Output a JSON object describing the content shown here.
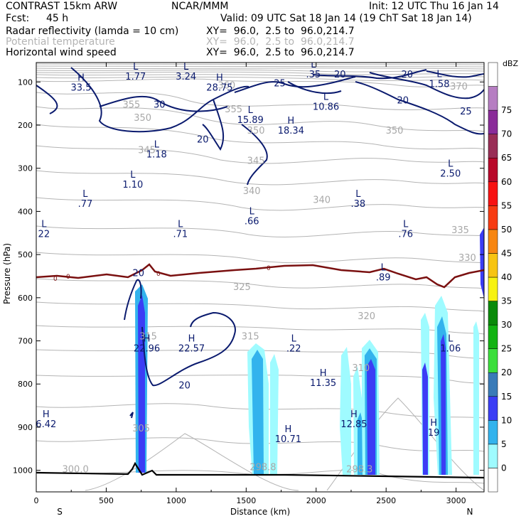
{
  "header": {
    "title": "CONTRAST 15km ARW",
    "org": "NCAR/MMM",
    "init": "Init: 12 UTC Thu 16 Jan 14",
    "fcst_label": "Fcst:",
    "fcst_value": "45 h",
    "valid": "Valid: 09 UTC Sat 18 Jan 14 (19 ChT Sat 18 Jan 14)",
    "fields": [
      {
        "name": "Radar reflectivity (lamda = 10 cm)",
        "xy": "XY=  96.0,  2.5 to  96.0,214.7",
        "color": "#000000"
      },
      {
        "name": "Potential temperature",
        "xy": "XY=  96.0,  2.5 to  96.0,214.7",
        "color": "#b4b4b4"
      },
      {
        "name": "Horizontal wind speed",
        "xy": "XY=  96.0,  2.5 to  96.0,214.7",
        "color": "#000000"
      }
    ]
  },
  "chart_data": {
    "type": "cross-section",
    "xlabel": "Distance (km)",
    "ylabel": "Pressure (hPa)",
    "x_ticks": [
      0,
      500,
      1000,
      1500,
      2000,
      2500,
      3000
    ],
    "y_ticks": [
      100,
      200,
      300,
      400,
      500,
      600,
      700,
      800,
      900,
      1000
    ],
    "xlim": [
      0,
      3200
    ],
    "ylim": [
      1050,
      55
    ],
    "x_end_labels": {
      "left": "S",
      "right": "N"
    },
    "colorbar": {
      "unit": "dBZ",
      "levels": [
        "0",
        "5",
        "10",
        "15",
        "20",
        "25",
        "30",
        "35",
        "40",
        "45",
        "50",
        "55",
        "60",
        "65",
        "70",
        "75"
      ],
      "colors": [
        "#ffffff",
        "#9ffbff",
        "#33b3ed",
        "#3b3df5",
        "#3a7bb8",
        "#3bde3b",
        "#12b312",
        "#0a8a0a",
        "#f7f212",
        "#f7c412",
        "#f78612",
        "#f73b12",
        "#f71212",
        "#b8082a",
        "#992e56",
        "#8a2c99",
        "#b67ec2",
        "#ffffff"
      ]
    },
    "potential_temperature_labels": [
      {
        "text": "370",
        "x": 3020,
        "p": 118
      },
      {
        "text": "360",
        "x": 1360,
        "p": 115
      },
      {
        "text": "355",
        "x": 680,
        "p": 160
      },
      {
        "text": "355",
        "x": 1410,
        "p": 170
      },
      {
        "text": "350",
        "x": 760,
        "p": 190
      },
      {
        "text": "350",
        "x": 1570,
        "p": 220
      },
      {
        "text": "350",
        "x": 2560,
        "p": 220
      },
      {
        "text": "345",
        "x": 790,
        "p": 265
      },
      {
        "text": "345",
        "x": 1570,
        "p": 290
      },
      {
        "text": "340",
        "x": 1540,
        "p": 360
      },
      {
        "text": "340",
        "x": 2040,
        "p": 380
      },
      {
        "text": "335",
        "x": 3030,
        "p": 450
      },
      {
        "text": "330",
        "x": 3080,
        "p": 515
      },
      {
        "text": "325",
        "x": 1470,
        "p": 582
      },
      {
        "text": "320",
        "x": 2360,
        "p": 650
      },
      {
        "text": "315",
        "x": 800,
        "p": 697
      },
      {
        "text": "315",
        "x": 1530,
        "p": 697
      },
      {
        "text": "310",
        "x": 2320,
        "p": 770
      },
      {
        "text": "305",
        "x": 750,
        "p": 910
      },
      {
        "text": "300.0",
        "x": 280,
        "p": 1005
      },
      {
        "text": "298.8",
        "x": 1620,
        "p": 1000
      },
      {
        "text": "298.3",
        "x": 2310,
        "p": 1005
      }
    ],
    "wind_speed_labels": [
      {
        "text": "30",
        "x": 880,
        "p": 160
      },
      {
        "text": "25",
        "x": 1740,
        "p": 110
      },
      {
        "text": "20",
        "x": 2170,
        "p": 90
      },
      {
        "text": "20",
        "x": 2650,
        "p": 90
      },
      {
        "text": "20",
        "x": 2620,
        "p": 150
      },
      {
        "text": "25",
        "x": 3070,
        "p": 175
      },
      {
        "text": "20",
        "x": 1190,
        "p": 240
      },
      {
        "text": "20",
        "x": 730,
        "p": 550
      },
      {
        "text": "20",
        "x": 1060,
        "p": 810
      }
    ],
    "extrema": [
      {
        "type": "H",
        "value": "33.5",
        "x": 320,
        "p": 100
      },
      {
        "type": "L",
        "value": "1.77",
        "x": 710,
        "p": 75
      },
      {
        "type": "L",
        "value": "3.24",
        "x": 1070,
        "p": 75
      },
      {
        "type": "H",
        "value": "28.75",
        "x": 1310,
        "p": 100
      },
      {
        "type": "L",
        "value": ".35",
        "x": 1980,
        "p": 70
      },
      {
        "type": "L",
        "value": "1.58",
        "x": 2880,
        "p": 92
      },
      {
        "type": "L",
        "value": "10.86",
        "x": 2070,
        "p": 145
      },
      {
        "type": "L",
        "value": "15.89",
        "x": 1530,
        "p": 175
      },
      {
        "type": "H",
        "value": "18.34",
        "x": 1820,
        "p": 200
      },
      {
        "type": "L",
        "value": "1.18",
        "x": 860,
        "p": 255
      },
      {
        "type": "L",
        "value": "1.10",
        "x": 690,
        "p": 325
      },
      {
        "type": "L",
        "value": "2.50",
        "x": 2960,
        "p": 300
      },
      {
        "type": "L",
        "value": ".77",
        "x": 350,
        "p": 370
      },
      {
        "type": "L",
        "value": ".38",
        "x": 2300,
        "p": 370
      },
      {
        "type": "L",
        "value": ".66",
        "x": 1540,
        "p": 410
      },
      {
        "type": "L",
        "value": "22",
        "x": 55,
        "p": 440
      },
      {
        "type": "L",
        "value": ".71",
        "x": 1030,
        "p": 440
      },
      {
        "type": "L",
        "value": ".76",
        "x": 2640,
        "p": 440
      },
      {
        "type": "L",
        "value": ".89",
        "x": 2480,
        "p": 540
      },
      {
        "type": "H",
        "value": "22.96",
        "x": 790,
        "p": 705
      },
      {
        "type": "H",
        "value": "22.57",
        "x": 1110,
        "p": 705
      },
      {
        "type": "L",
        "value": ".22",
        "x": 1840,
        "p": 705
      },
      {
        "type": "L",
        "value": "1.06",
        "x": 2960,
        "p": 705
      },
      {
        "type": "H",
        "value": "11.35",
        "x": 2050,
        "p": 785
      },
      {
        "type": "H",
        "value": "6.42",
        "x": 70,
        "p": 880
      },
      {
        "type": "H",
        "value": "12.85",
        "x": 2270,
        "p": 880
      },
      {
        "type": "H",
        "value": "10.71",
        "x": 1800,
        "p": 915
      },
      {
        "type": "H",
        "value": "19",
        "x": 2840,
        "p": 900
      }
    ],
    "freezing_label": "0"
  }
}
